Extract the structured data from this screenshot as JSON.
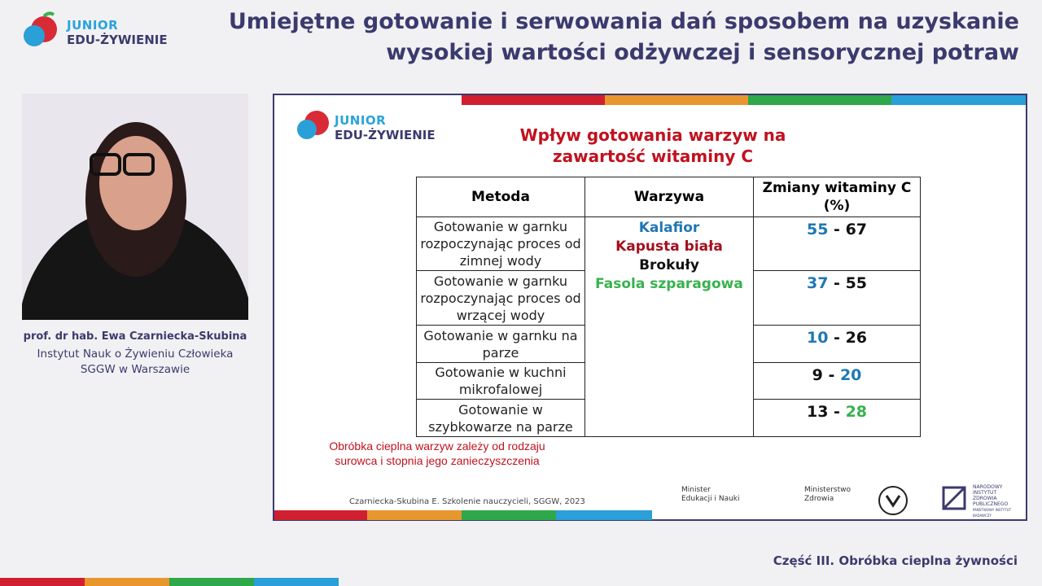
{
  "header": {
    "logo": {
      "line1": "JUNIOR",
      "line2": "EDU-ŻYWIENIE"
    },
    "title_lines": [
      "Umiejętne gotowanie i serwowania dań sposobem na uzyskanie",
      "wysokiej wartości odżywczej i sensorycznej potraw"
    ]
  },
  "speaker": {
    "name": "prof. dr hab. Ewa Czarniecka-Skubina",
    "affiliation_lines": [
      "Instytut Nauk o Żywieniu Człowieka",
      "SGGW w Warszawie"
    ]
  },
  "slide": {
    "logo": {
      "line1": "JUNIOR",
      "line2": "EDU-ŻYWIENIE"
    },
    "title_lines": [
      "Wpływ gotowania warzyw na",
      "zawartość witaminy C"
    ],
    "table": {
      "headers": [
        "Metoda",
        "Warzywa",
        "Zmiany witaminy C (%)"
      ],
      "methods": [
        "Gotowanie w garnku rozpoczynając proces od zimnej wody",
        "Gotowanie w garnku rozpoczynając proces od wrzącej wody",
        "Gotowanie w garnku na parze",
        "Gotowanie w kuchni mikrofalowej",
        "Gotowanie w szybkowarze na parze"
      ],
      "vegetables": [
        {
          "name": "Kalafior",
          "color": "#1f78b4"
        },
        {
          "name": "Kapusta biała",
          "color": "#a3101c"
        },
        {
          "name": "Brokuły",
          "color": "#111111"
        },
        {
          "name": "Fasola szparagowa",
          "color": "#37b24d"
        }
      ],
      "range_separator": "-",
      "ranges": [
        {
          "min": 55,
          "max": 67,
          "min_color": "#1f78b4",
          "max_color": "#111111"
        },
        {
          "min": 37,
          "max": 55,
          "min_color": "#1f78b4",
          "max_color": "#111111"
        },
        {
          "min": 10,
          "max": 26,
          "min_color": "#1f78b4",
          "max_color": "#111111"
        },
        {
          "min": 9,
          "max": 20,
          "min_color": "#111111",
          "max_color": "#1f78b4"
        },
        {
          "min": 13,
          "max": 28,
          "min_color": "#111111",
          "max_color": "#37b24d"
        }
      ]
    },
    "note_lines": [
      "Obróbka cieplna warzyw zależy od rodzaju",
      "surowca i stopnia jego zanieczyszczenia"
    ],
    "citation": "Czarniecka-Skubina E. Szkolenie nauczycieli, SGGW, 2023",
    "partners": {
      "men": [
        "Minister",
        "Edukacji i Nauki"
      ],
      "mz": [
        "Ministerstwo",
        "Zdrowia"
      ],
      "nizp": [
        "NARODOWY",
        "INSTYTUT",
        "ZDROWIA",
        "PUBLICZNEGO",
        "PAŃSTWOWY INSTYTUT BADAWCZY"
      ]
    }
  },
  "footer": "Część III. Obróbka cieplna żywności"
}
